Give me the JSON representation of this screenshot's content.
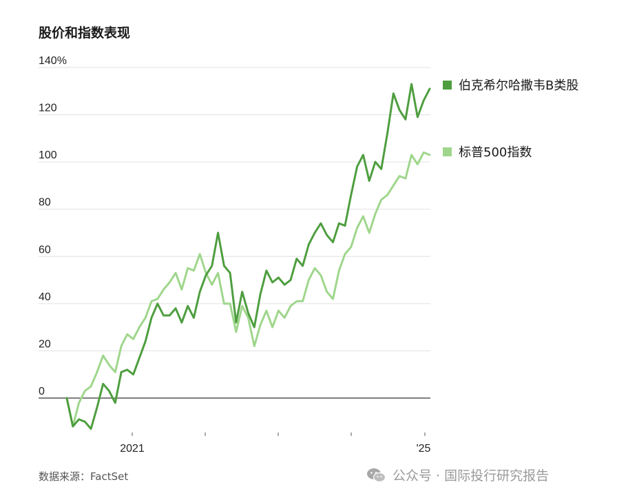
{
  "title": "股价和指数表现",
  "source": "数据来源：FactSet",
  "watermark": "公众号 · 国际投行研究报告",
  "colors": {
    "berkshire": "#4e9e3f",
    "sp500": "#9fd68c",
    "grid": "#e0e0e0",
    "zero": "#333333"
  },
  "chart_data": {
    "type": "line",
    "title": "股价和指数表现",
    "y_unit_label": "%",
    "ylim": [
      -15,
      140
    ],
    "y_ticks": [
      0,
      20,
      40,
      60,
      80,
      100,
      120,
      140
    ],
    "y_tick_labels": [
      "0",
      "20",
      "40",
      "60",
      "80",
      "100",
      "120",
      "140%"
    ],
    "x_tick_labels": [
      "2021",
      "",
      "",
      "",
      "",
      "'25"
    ],
    "x_major_label_positions": [
      11,
      70
    ],
    "grid": true,
    "legend_position": "right",
    "series": [
      {
        "name": "伯克希尔哈撒韦B类股",
        "color": "#4e9e3f",
        "values": [
          0,
          -12,
          -9,
          -10,
          -13,
          -4,
          6,
          3,
          -2,
          11,
          12,
          10,
          17,
          24,
          34,
          40,
          35,
          35,
          38,
          32,
          39,
          34,
          45,
          52,
          56,
          70,
          56,
          53,
          32,
          45,
          36,
          30,
          44,
          54,
          49,
          51,
          48,
          50,
          59,
          56,
          65,
          70,
          74,
          69,
          66,
          74,
          73,
          86,
          98,
          103,
          92,
          100,
          97,
          112,
          129,
          122,
          118,
          133,
          119,
          126,
          131
        ]
      },
      {
        "name": "标普500指数",
        "color": "#9fd68c",
        "values": [
          0,
          -12,
          -2,
          3,
          5,
          11,
          18,
          14,
          11,
          22,
          27,
          25,
          30,
          34,
          41,
          42,
          46,
          49,
          53,
          46,
          55,
          54,
          61,
          53,
          48,
          53,
          40,
          40,
          28,
          39,
          34,
          22,
          31,
          37,
          30,
          37,
          34,
          39,
          41,
          41,
          50,
          55,
          52,
          45,
          42,
          54,
          61,
          64,
          72,
          77,
          70,
          78,
          84,
          86,
          90,
          94,
          93,
          103,
          99,
          104,
          103
        ]
      }
    ]
  }
}
